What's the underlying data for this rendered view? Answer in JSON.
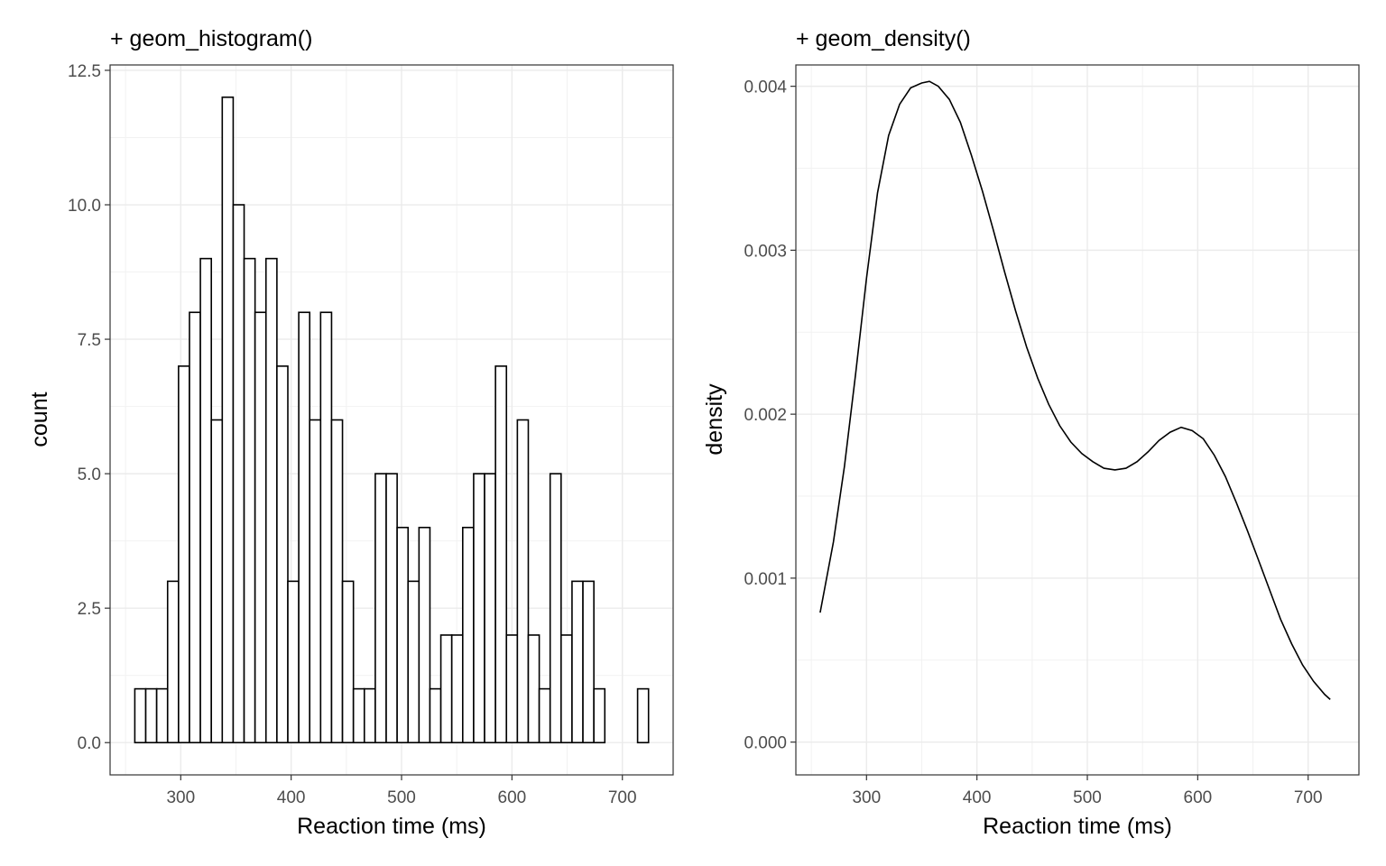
{
  "chart_data": [
    {
      "type": "bar",
      "title": "+ geom_histogram()",
      "xlabel": "Reaction time (ms)",
      "ylabel": "count",
      "xlim": [
        236,
        746
      ],
      "ylim": [
        -0.6,
        12.6
      ],
      "x_ticks": [
        300,
        400,
        500,
        600,
        700
      ],
      "y_ticks": [
        0,
        2.5,
        5,
        7.5,
        10,
        12.5
      ],
      "y_tick_labels": [
        "0.0",
        "2.5",
        "5.0",
        "7.5",
        "10.0",
        "12.5"
      ],
      "grid": true,
      "bin_start": 258.4,
      "bin_width": 9.9,
      "values": [
        1,
        1,
        1,
        3,
        7,
        8,
        9,
        6,
        12,
        10,
        9,
        8,
        9,
        7,
        3,
        8,
        6,
        8,
        6,
        3,
        1,
        1,
        5,
        5,
        4,
        3,
        4,
        1,
        2,
        2,
        4,
        5,
        5,
        7,
        2,
        6,
        2,
        1,
        5,
        2,
        3,
        3,
        1,
        0,
        0,
        0,
        1
      ],
      "fill": "#ffffff",
      "stroke": "#000000"
    },
    {
      "type": "line",
      "title": "+ geom_density()",
      "xlabel": "Reaction time (ms)",
      "ylabel": "density",
      "xlim": [
        236,
        746
      ],
      "ylim": [
        -0.0002,
        0.00413
      ],
      "x_ticks": [
        300,
        400,
        500,
        600,
        700
      ],
      "y_ticks": [
        0,
        0.001,
        0.002,
        0.003,
        0.004
      ],
      "y_tick_labels": [
        "0.000",
        "0.001",
        "0.002",
        "0.003",
        "0.004"
      ],
      "grid": true,
      "series": [
        {
          "x": [
            258,
            270,
            280,
            290,
            300,
            310,
            320,
            330,
            340,
            350,
            357,
            365,
            375,
            385,
            395,
            405,
            415,
            425,
            435,
            445,
            455,
            465,
            475,
            485,
            495,
            505,
            515,
            525,
            535,
            545,
            555,
            565,
            575,
            585,
            595,
            605,
            615,
            625,
            635,
            645,
            655,
            665,
            675,
            685,
            695,
            705,
            715,
            720
          ],
          "values": [
            0.00079,
            0.00122,
            0.00168,
            0.00224,
            0.00283,
            0.00335,
            0.0037,
            0.00389,
            0.00399,
            0.00402,
            0.00403,
            0.004,
            0.00392,
            0.00378,
            0.00358,
            0.00336,
            0.00312,
            0.00287,
            0.00263,
            0.00241,
            0.00222,
            0.00206,
            0.00193,
            0.00183,
            0.00176,
            0.00171,
            0.00167,
            0.00166,
            0.00167,
            0.00171,
            0.00177,
            0.00184,
            0.00189,
            0.00192,
            0.0019,
            0.00185,
            0.00175,
            0.00162,
            0.00146,
            0.00129,
            0.00111,
            0.00093,
            0.00075,
            0.0006,
            0.00047,
            0.00037,
            0.00029,
            0.00026
          ]
        }
      ],
      "stroke": "#000000"
    }
  ]
}
